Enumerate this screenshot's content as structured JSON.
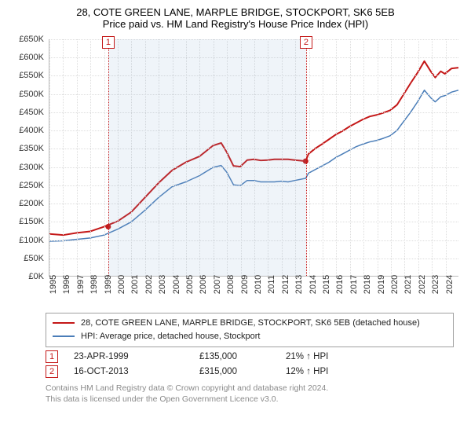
{
  "title": {
    "line1": "28, COTE GREEN LANE, MARPLE BRIDGE, STOCKPORT, SK6 5EB",
    "line2": "Price paid vs. HM Land Registry's House Price Index (HPI)"
  },
  "chart": {
    "type": "line",
    "background_color": "#ffffff",
    "grid_color": "#dddddd",
    "axis_color": "#bbbbbb",
    "x_years": [
      1995,
      1996,
      1997,
      1998,
      1999,
      2000,
      2001,
      2002,
      2003,
      2004,
      2005,
      2006,
      2007,
      2008,
      2009,
      2010,
      2011,
      2012,
      2013,
      2014,
      2015,
      2016,
      2017,
      2018,
      2019,
      2020,
      2021,
      2022,
      2023,
      2024
    ],
    "x_min": 1995,
    "x_max": 2025,
    "y_min": 0,
    "y_max": 650000,
    "y_tick_step": 50000,
    "y_prefix": "£",
    "y_suffix": "K",
    "x_tick_fontsize": 11,
    "y_tick_fontsize": 11,
    "series": [
      {
        "name": "subject",
        "color": "#c41818",
        "width": 2,
        "points": [
          [
            1995,
            115000
          ],
          [
            1996,
            112000
          ],
          [
            1997,
            118000
          ],
          [
            1998,
            122000
          ],
          [
            1999,
            135000
          ],
          [
            2000,
            150000
          ],
          [
            2001,
            175000
          ],
          [
            2002,
            215000
          ],
          [
            2003,
            255000
          ],
          [
            2004,
            290000
          ],
          [
            2005,
            312000
          ],
          [
            2006,
            328000
          ],
          [
            2007,
            358000
          ],
          [
            2007.6,
            365000
          ],
          [
            2008,
            340000
          ],
          [
            2008.5,
            302000
          ],
          [
            2009,
            300000
          ],
          [
            2009.5,
            318000
          ],
          [
            2010,
            320000
          ],
          [
            2010.5,
            317000
          ],
          [
            2011,
            318000
          ],
          [
            2011.5,
            320000
          ],
          [
            2012,
            320000
          ],
          [
            2012.5,
            320000
          ],
          [
            2013,
            318000
          ],
          [
            2013.8,
            315000
          ],
          [
            2014,
            335000
          ],
          [
            2014.5,
            350000
          ],
          [
            2015,
            362000
          ],
          [
            2015.5,
            375000
          ],
          [
            2016,
            388000
          ],
          [
            2016.5,
            398000
          ],
          [
            2017,
            410000
          ],
          [
            2017.5,
            420000
          ],
          [
            2018,
            430000
          ],
          [
            2018.5,
            438000
          ],
          [
            2019,
            442000
          ],
          [
            2019.5,
            448000
          ],
          [
            2020,
            455000
          ],
          [
            2020.5,
            470000
          ],
          [
            2021,
            500000
          ],
          [
            2021.5,
            530000
          ],
          [
            2022,
            558000
          ],
          [
            2022.5,
            590000
          ],
          [
            2023,
            560000
          ],
          [
            2023.3,
            545000
          ],
          [
            2023.7,
            562000
          ],
          [
            2024,
            555000
          ],
          [
            2024.5,
            570000
          ],
          [
            2025,
            572000
          ]
        ]
      },
      {
        "name": "hpi",
        "color": "#4a7db8",
        "width": 1.5,
        "points": [
          [
            1995,
            95000
          ],
          [
            1996,
            96000
          ],
          [
            1997,
            100000
          ],
          [
            1998,
            104000
          ],
          [
            1999,
            112000
          ],
          [
            2000,
            128000
          ],
          [
            2001,
            148000
          ],
          [
            2002,
            180000
          ],
          [
            2003,
            215000
          ],
          [
            2004,
            245000
          ],
          [
            2005,
            258000
          ],
          [
            2006,
            275000
          ],
          [
            2007,
            298000
          ],
          [
            2007.6,
            303000
          ],
          [
            2008,
            285000
          ],
          [
            2008.5,
            250000
          ],
          [
            2009,
            248000
          ],
          [
            2009.5,
            262000
          ],
          [
            2010,
            262000
          ],
          [
            2010.5,
            258000
          ],
          [
            2011,
            258000
          ],
          [
            2011.5,
            258000
          ],
          [
            2012,
            260000
          ],
          [
            2012.5,
            258000
          ],
          [
            2013,
            262000
          ],
          [
            2013.8,
            268000
          ],
          [
            2014,
            282000
          ],
          [
            2014.5,
            292000
          ],
          [
            2015,
            302000
          ],
          [
            2015.5,
            312000
          ],
          [
            2016,
            325000
          ],
          [
            2016.5,
            335000
          ],
          [
            2017,
            345000
          ],
          [
            2017.5,
            355000
          ],
          [
            2018,
            362000
          ],
          [
            2018.5,
            368000
          ],
          [
            2019,
            372000
          ],
          [
            2019.5,
            378000
          ],
          [
            2020,
            385000
          ],
          [
            2020.5,
            400000
          ],
          [
            2021,
            425000
          ],
          [
            2021.5,
            450000
          ],
          [
            2022,
            478000
          ],
          [
            2022.5,
            510000
          ],
          [
            2023,
            488000
          ],
          [
            2023.3,
            478000
          ],
          [
            2023.7,
            492000
          ],
          [
            2024,
            495000
          ],
          [
            2024.5,
            505000
          ],
          [
            2025,
            510000
          ]
        ]
      }
    ],
    "shade_band": {
      "from": 1999.31,
      "to": 2013.79,
      "color": "rgba(130,170,210,0.13)"
    },
    "sale_markers": [
      {
        "n": "1",
        "x": 1999.31,
        "y": 135000,
        "dot_color": "#c41818",
        "line_color": "#c41818"
      },
      {
        "n": "2",
        "x": 2013.79,
        "y": 315000,
        "dot_color": "#c41818",
        "line_color": "#c41818"
      }
    ],
    "marker_box_top_offset": -4,
    "marker_box_border_color": "#c41818",
    "marker_box_text_color": "#c41818"
  },
  "legend": {
    "border_color": "#a0a0a0",
    "entries": [
      {
        "color": "#c41818",
        "label": "28, COTE GREEN LANE, MARPLE BRIDGE, STOCKPORT, SK6 5EB (detached house)"
      },
      {
        "color": "#4a7db8",
        "label": "HPI: Average price, detached house, Stockport"
      }
    ]
  },
  "sales": [
    {
      "n": "1",
      "date": "23-APR-1999",
      "price": "£135,000",
      "delta": "21% ↑ HPI"
    },
    {
      "n": "2",
      "date": "16-OCT-2013",
      "price": "£315,000",
      "delta": "12% ↑ HPI"
    }
  ],
  "attribution": {
    "line1": "Contains HM Land Registry data © Crown copyright and database right 2024.",
    "line2": "This data is licensed under the Open Government Licence v3.0."
  }
}
